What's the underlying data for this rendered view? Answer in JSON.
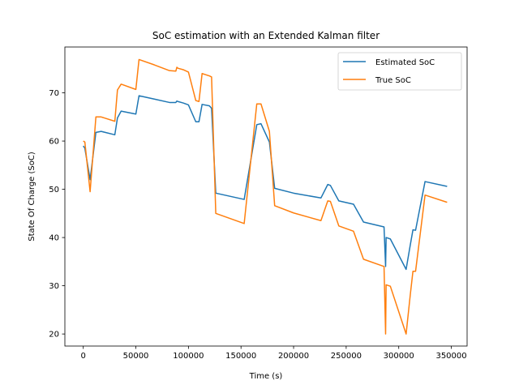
{
  "chart_data": {
    "type": "line",
    "title": "SoC estimation with an Extended Kalman filter",
    "xlabel": "Time (s)",
    "ylabel": "State Of Charge (SoC)",
    "xlim": [
      -17500,
      365000
    ],
    "ylim": [
      17.5,
      79.5
    ],
    "xticks": [
      0,
      50000,
      100000,
      150000,
      200000,
      250000,
      300000,
      350000
    ],
    "yticks": [
      20,
      30,
      40,
      50,
      60,
      70
    ],
    "grid": false,
    "legend_position": "top-right",
    "series": [
      {
        "name": "Estimated SoC",
        "color": "#1f77b4",
        "x": [
          0,
          1500,
          6500,
          12000,
          17000,
          30000,
          32500,
          36000,
          50000,
          53000,
          67500,
          82000,
          88000,
          89000,
          90000,
          95000,
          100000,
          107000,
          110000,
          113000,
          120000,
          122000,
          126000,
          153000,
          165000,
          169000,
          177000,
          182000,
          200000,
          226000,
          232500,
          235000,
          243000,
          257000,
          266500,
          286000,
          287500,
          288000,
          292000,
          307000,
          311000,
          313500,
          316000,
          325000,
          346000
        ],
        "y": [
          59,
          58.5,
          52,
          61.8,
          62,
          61.3,
          64.8,
          66.2,
          65.6,
          69.4,
          68.7,
          68,
          68,
          68.3,
          68.2,
          67.9,
          67.5,
          64,
          64,
          67.6,
          67.3,
          66.8,
          49.2,
          47.9,
          63.4,
          63.6,
          59.8,
          50.2,
          49.2,
          48.2,
          51,
          50.8,
          47.6,
          46.9,
          43.2,
          42.2,
          34,
          40,
          39.7,
          33.4,
          38.5,
          41.6,
          41.5,
          51.6,
          50.6
        ]
      },
      {
        "name": "True SoC",
        "color": "#ff7f0e",
        "x": [
          0,
          1500,
          6500,
          12000,
          17000,
          30000,
          32500,
          36000,
          50000,
          53000,
          67500,
          82000,
          88000,
          89000,
          90000,
          95000,
          100000,
          107000,
          110000,
          113000,
          120000,
          122000,
          126000,
          153000,
          165000,
          169000,
          177000,
          182000,
          200000,
          226000,
          232500,
          235000,
          243000,
          257000,
          266500,
          286000,
          287500,
          288000,
          292000,
          307000,
          311000,
          313500,
          316000,
          325000,
          346000
        ],
        "y": [
          60,
          59.8,
          49.5,
          65,
          65,
          64.1,
          70.6,
          71.8,
          70.7,
          76.9,
          75.8,
          74.6,
          74.5,
          75.3,
          75.1,
          74.8,
          74.3,
          68.4,
          68.2,
          74,
          73.5,
          73.3,
          45,
          42.9,
          67.7,
          67.7,
          62,
          46.6,
          45.1,
          43.5,
          47.6,
          47.5,
          42.4,
          41.3,
          35.5,
          34,
          20,
          30.2,
          29.9,
          20,
          28.2,
          33,
          33,
          48.8,
          47.3
        ]
      }
    ]
  }
}
